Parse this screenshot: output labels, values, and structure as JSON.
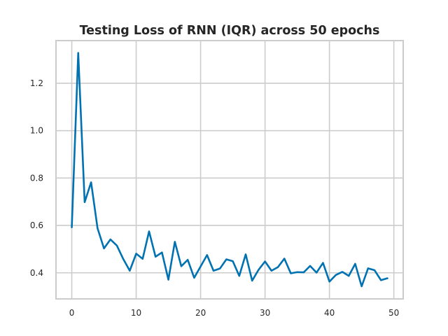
{
  "chart_data": {
    "type": "line",
    "title": "Testing Loss of RNN (IQR) across 50 epochs",
    "xlabel": "",
    "ylabel": "",
    "xlim": [
      -2.45,
      51.45
    ],
    "ylim": [
      0.29,
      1.38
    ],
    "x_ticks": [
      0,
      10,
      20,
      30,
      40,
      50
    ],
    "y_ticks": [
      0.4,
      0.6,
      0.8,
      1.0,
      1.2
    ],
    "y_tick_labels": [
      "0.4",
      "0.6",
      "0.8",
      "1.0",
      "1.2"
    ],
    "grid": true,
    "legend": "none",
    "line_color": "#0072b2",
    "x": [
      0,
      1,
      2,
      3,
      4,
      5,
      6,
      7,
      8,
      9,
      10,
      11,
      12,
      13,
      14,
      15,
      16,
      17,
      18,
      19,
      20,
      21,
      22,
      23,
      24,
      25,
      26,
      27,
      28,
      29,
      30,
      31,
      32,
      33,
      34,
      35,
      36,
      37,
      38,
      39,
      40,
      41,
      42,
      43,
      44,
      45,
      46,
      47,
      48,
      49
    ],
    "series": [
      {
        "values": [
          0.592,
          1.328,
          0.698,
          0.782,
          0.588,
          0.503,
          0.541,
          0.515,
          0.458,
          0.409,
          0.481,
          0.459,
          0.575,
          0.468,
          0.486,
          0.371,
          0.531,
          0.428,
          0.455,
          0.379,
          0.427,
          0.475,
          0.409,
          0.418,
          0.457,
          0.449,
          0.387,
          0.478,
          0.367,
          0.413,
          0.448,
          0.409,
          0.424,
          0.46,
          0.398,
          0.403,
          0.402,
          0.429,
          0.401,
          0.442,
          0.363,
          0.391,
          0.404,
          0.387,
          0.438,
          0.343,
          0.419,
          0.411,
          0.369,
          0.377
        ]
      }
    ]
  }
}
